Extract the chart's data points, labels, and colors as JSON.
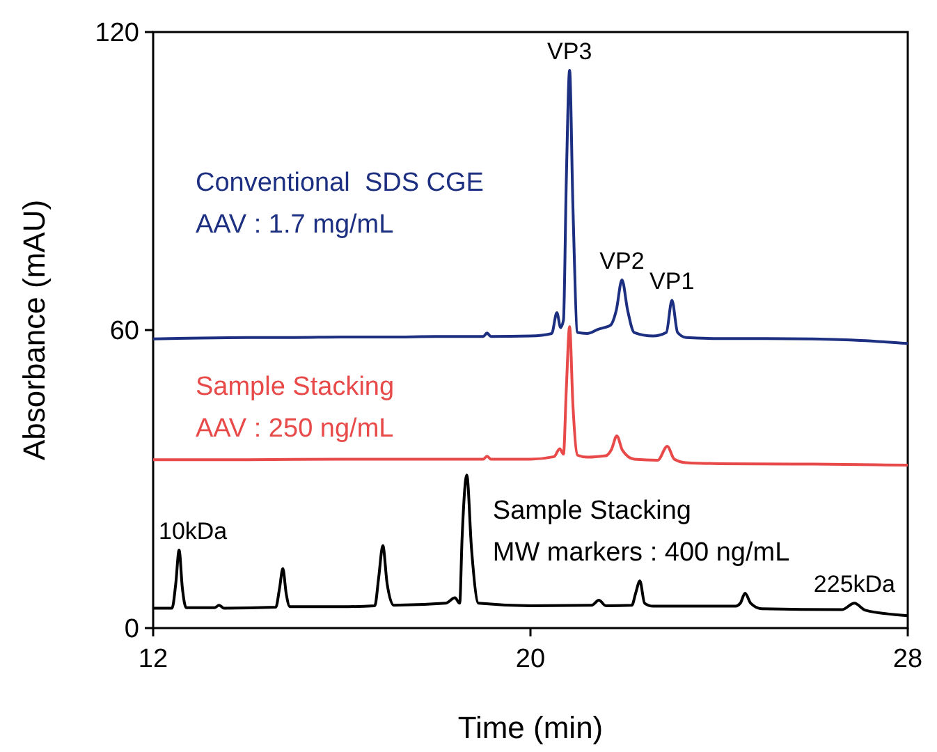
{
  "chart_data": {
    "type": "line",
    "xlabel": "Time (min)",
    "ylabel": "Absorbance (mAU)",
    "xlim": [
      12,
      28
    ],
    "xticks": [
      12,
      20,
      28
    ],
    "ylim": [
      0,
      120
    ],
    "yticks": [
      0,
      60,
      120
    ],
    "grid": false,
    "marker": "none",
    "line_style": "solid",
    "series": [
      {
        "name": "Conventional  SDS CGE\nAAV : 1.7 mg/mL",
        "color": "#1c2f80",
        "x": [
          12,
          13,
          14,
          15,
          16,
          17,
          18,
          19,
          19.08,
          19.16,
          20,
          20.45,
          20.56,
          20.64,
          20.7,
          20.76,
          20.83,
          20.9,
          21.0,
          21.2,
          21.45,
          21.57,
          21.7,
          21.82,
          21.94,
          22.06,
          22.2,
          22.6,
          22.88,
          23.0,
          23.12,
          23.3,
          24,
          25,
          26,
          27,
          28
        ],
        "values": [
          58.2,
          58.4,
          58.5,
          58.5,
          58.6,
          58.6,
          58.7,
          58.7,
          59.4,
          58.7,
          58.8,
          59.3,
          63.5,
          60.5,
          62,
          90,
          112.3,
          85,
          59.5,
          59.3,
          60.2,
          60.5,
          61,
          64,
          70.1,
          64,
          59.5,
          58.8,
          59.5,
          66,
          59.5,
          58.5,
          58.3,
          58.3,
          58.2,
          57.9,
          57.3
        ]
      },
      {
        "name": "Sample Stacking\nAAV : 250 ng/mL",
        "color": "#e84a4a",
        "x": [
          12,
          14,
          16,
          18,
          19,
          19.08,
          19.16,
          20,
          20.5,
          20.62,
          20.7,
          20.76,
          20.83,
          20.9,
          21.0,
          21.2,
          21.5,
          21.6,
          21.72,
          21.83,
          21.95,
          22.2,
          22.7,
          22.9,
          23.05,
          23.3,
          24,
          26,
          28
        ],
        "values": [
          33.9,
          33.9,
          34,
          34,
          34,
          34.6,
          34,
          34,
          34.5,
          36.1,
          35,
          48,
          60.7,
          45,
          34.8,
          34.4,
          34.6,
          34.7,
          36,
          38.7,
          35.8,
          34,
          33.8,
          36.6,
          34,
          33.3,
          33.1,
          33,
          32.8
        ]
      },
      {
        "name": "Sample Stacking\nMW markers : 400 ng/mL",
        "color": "#000000",
        "x": [
          12,
          12.4,
          12.48,
          12.55,
          12.62,
          12.7,
          13.3,
          13.4,
          13.5,
          14.6,
          14.68,
          14.75,
          14.82,
          14.9,
          16,
          16.7,
          16.78,
          16.87,
          16.96,
          17.1,
          18.2,
          18.4,
          18.5,
          18.55,
          18.65,
          18.75,
          18.9,
          20,
          21.3,
          21.45,
          21.6,
          22.15,
          22.23,
          22.32,
          22.42,
          22.6,
          24.35,
          24.45,
          24.55,
          24.67,
          24.9,
          26.6,
          26.87,
          27.1,
          28
        ],
        "values": [
          4,
          4,
          9,
          15.7,
          8,
          4.1,
          4.1,
          4.6,
          4,
          4.2,
          8,
          12,
          7,
          4.3,
          4.3,
          4.5,
          10,
          16.6,
          9,
          4.6,
          5,
          6.1,
          5,
          18,
          30.8,
          16,
          5,
          4.5,
          4.6,
          5.6,
          4.5,
          4.6,
          7,
          9.5,
          5,
          4.4,
          4.4,
          5,
          7,
          5,
          3.9,
          3.7,
          5,
          3.6,
          2.5
        ]
      }
    ],
    "annotations": [
      {
        "text": "VP3",
        "x": 20.83,
        "y": 112.3
      },
      {
        "text": "VP2",
        "x": 21.94,
        "y": 70.1
      },
      {
        "text": "VP1",
        "x": 23.0,
        "y": 66
      },
      {
        "text": "10kDa",
        "x": 12.55,
        "y": 15.7
      },
      {
        "text": "225kDa",
        "x": 26.87,
        "y": 5
      }
    ]
  }
}
